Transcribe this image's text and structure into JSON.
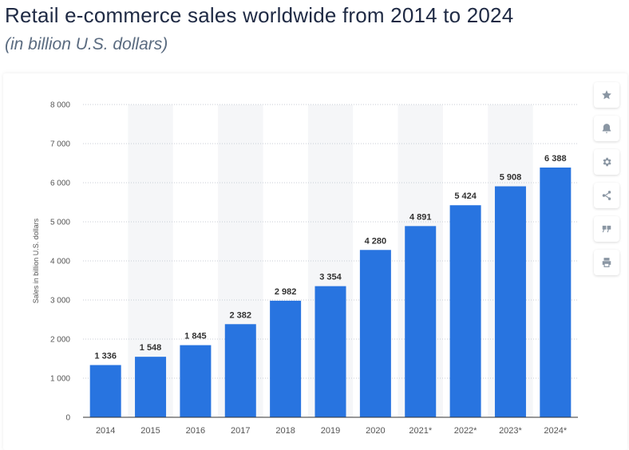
{
  "header": {
    "title": "Retail e-commerce sales worldwide from 2014 to 2024",
    "subtitle": "(in billion U.S. dollars)"
  },
  "toolbar": {
    "icons": [
      "star-icon",
      "bell-icon",
      "gear-icon",
      "share-icon",
      "quote-icon",
      "print-icon"
    ]
  },
  "colors": {
    "bar": "#2874e0",
    "band": "#f5f6f8",
    "grid": "#c8ced6",
    "axis_text": "#555555",
    "label_text": "#333333"
  },
  "chart_data": {
    "type": "bar",
    "categories": [
      "2014",
      "2015",
      "2016",
      "2017",
      "2018",
      "2019",
      "2020",
      "2021*",
      "2022*",
      "2023*",
      "2024*"
    ],
    "values": [
      1336,
      1548,
      1845,
      2382,
      2982,
      3354,
      4280,
      4891,
      5424,
      5908,
      6388
    ],
    "value_labels": [
      "1 336",
      "1 548",
      "1 845",
      "2 382",
      "2 982",
      "3 354",
      "4 280",
      "4 891",
      "5 424",
      "5 908",
      "6 388"
    ],
    "ylabel": "Sales in billion U.S. dollars",
    "xlabel": "",
    "ylim": [
      0,
      8000
    ],
    "yticks": [
      0,
      1000,
      2000,
      3000,
      4000,
      5000,
      6000,
      7000,
      8000
    ],
    "ytick_labels": [
      "0",
      "1 000",
      "2 000",
      "3 000",
      "4 000",
      "5 000",
      "6 000",
      "7 000",
      "8 000"
    ],
    "grid": true,
    "legend": "none"
  }
}
